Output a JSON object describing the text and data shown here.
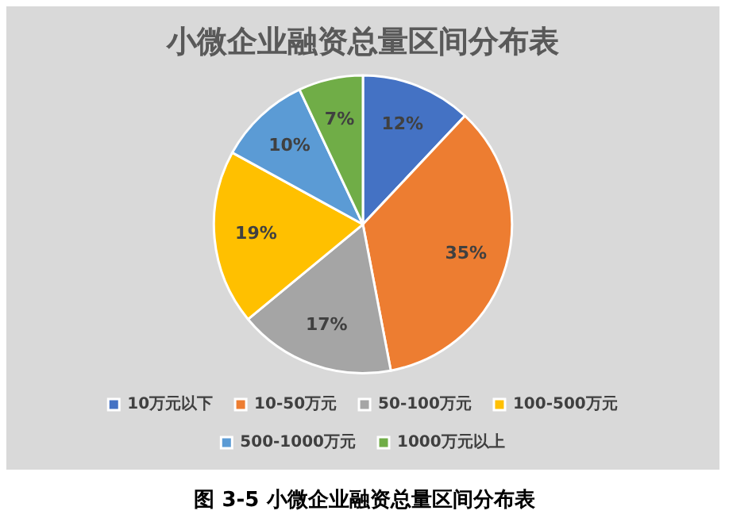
{
  "chart_data": {
    "type": "pie",
    "title": "小微企业融资总量区间分布表",
    "categories": [
      "10万元以下",
      "10-50万元",
      "50-100万元",
      "100-500万元",
      "500-1000万元",
      "1000万元以上"
    ],
    "values": [
      12,
      35,
      17,
      19,
      10,
      7
    ],
    "colors": [
      "#4472c4",
      "#ed7d31",
      "#a5a5a5",
      "#ffc000",
      "#5b9bd5",
      "#70ad47"
    ],
    "value_labels": [
      "12%",
      "35%",
      "17%",
      "19%",
      "10%",
      "7%"
    ],
    "legend": "bottom",
    "annotations": [
      "图 3-5 小微企业融资总量区间分布表"
    ]
  }
}
